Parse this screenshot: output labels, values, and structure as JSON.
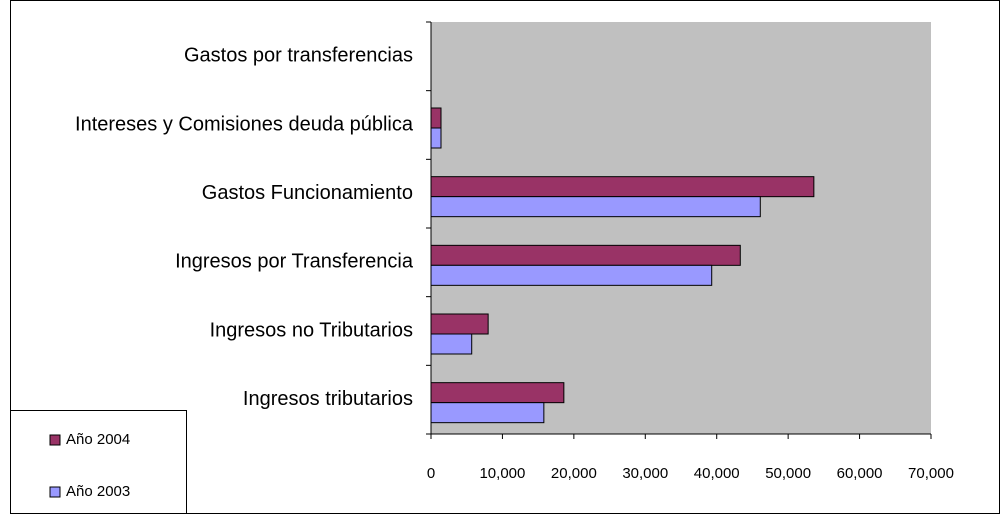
{
  "chart_data": {
    "type": "bar",
    "orientation": "horizontal",
    "categories": [
      "Ingresos tributarios",
      "Ingresos no Tributarios",
      "Ingresos por Transferencia",
      "Gastos Funcionamiento",
      "Intereses y Comisiones deuda pública",
      "Gastos por transferencias"
    ],
    "series": [
      {
        "name": "Año 2004",
        "color": "#993366",
        "values": [
          18600,
          8000,
          43300,
          53600,
          1400,
          0
        ]
      },
      {
        "name": "Año 2003",
        "color": "#9999ff",
        "values": [
          15800,
          5700,
          39300,
          46100,
          1400,
          0
        ]
      }
    ],
    "xlim": [
      0,
      70000
    ],
    "xticks": [
      0,
      {
        "value": 10000,
        "label": "10,000"
      },
      {
        "value": 20000,
        "label": "20,000"
      },
      {
        "value": 30000,
        "label": "30,000"
      },
      {
        "value": 40000,
        "label": "40,000"
      },
      {
        "value": 50000,
        "label": "50,000"
      },
      {
        "value": 60000,
        "label": "60,000"
      },
      {
        "value": 70000,
        "label": "70,000"
      }
    ],
    "plot_background": "#c0c0c0",
    "legend": "bottom-left"
  }
}
